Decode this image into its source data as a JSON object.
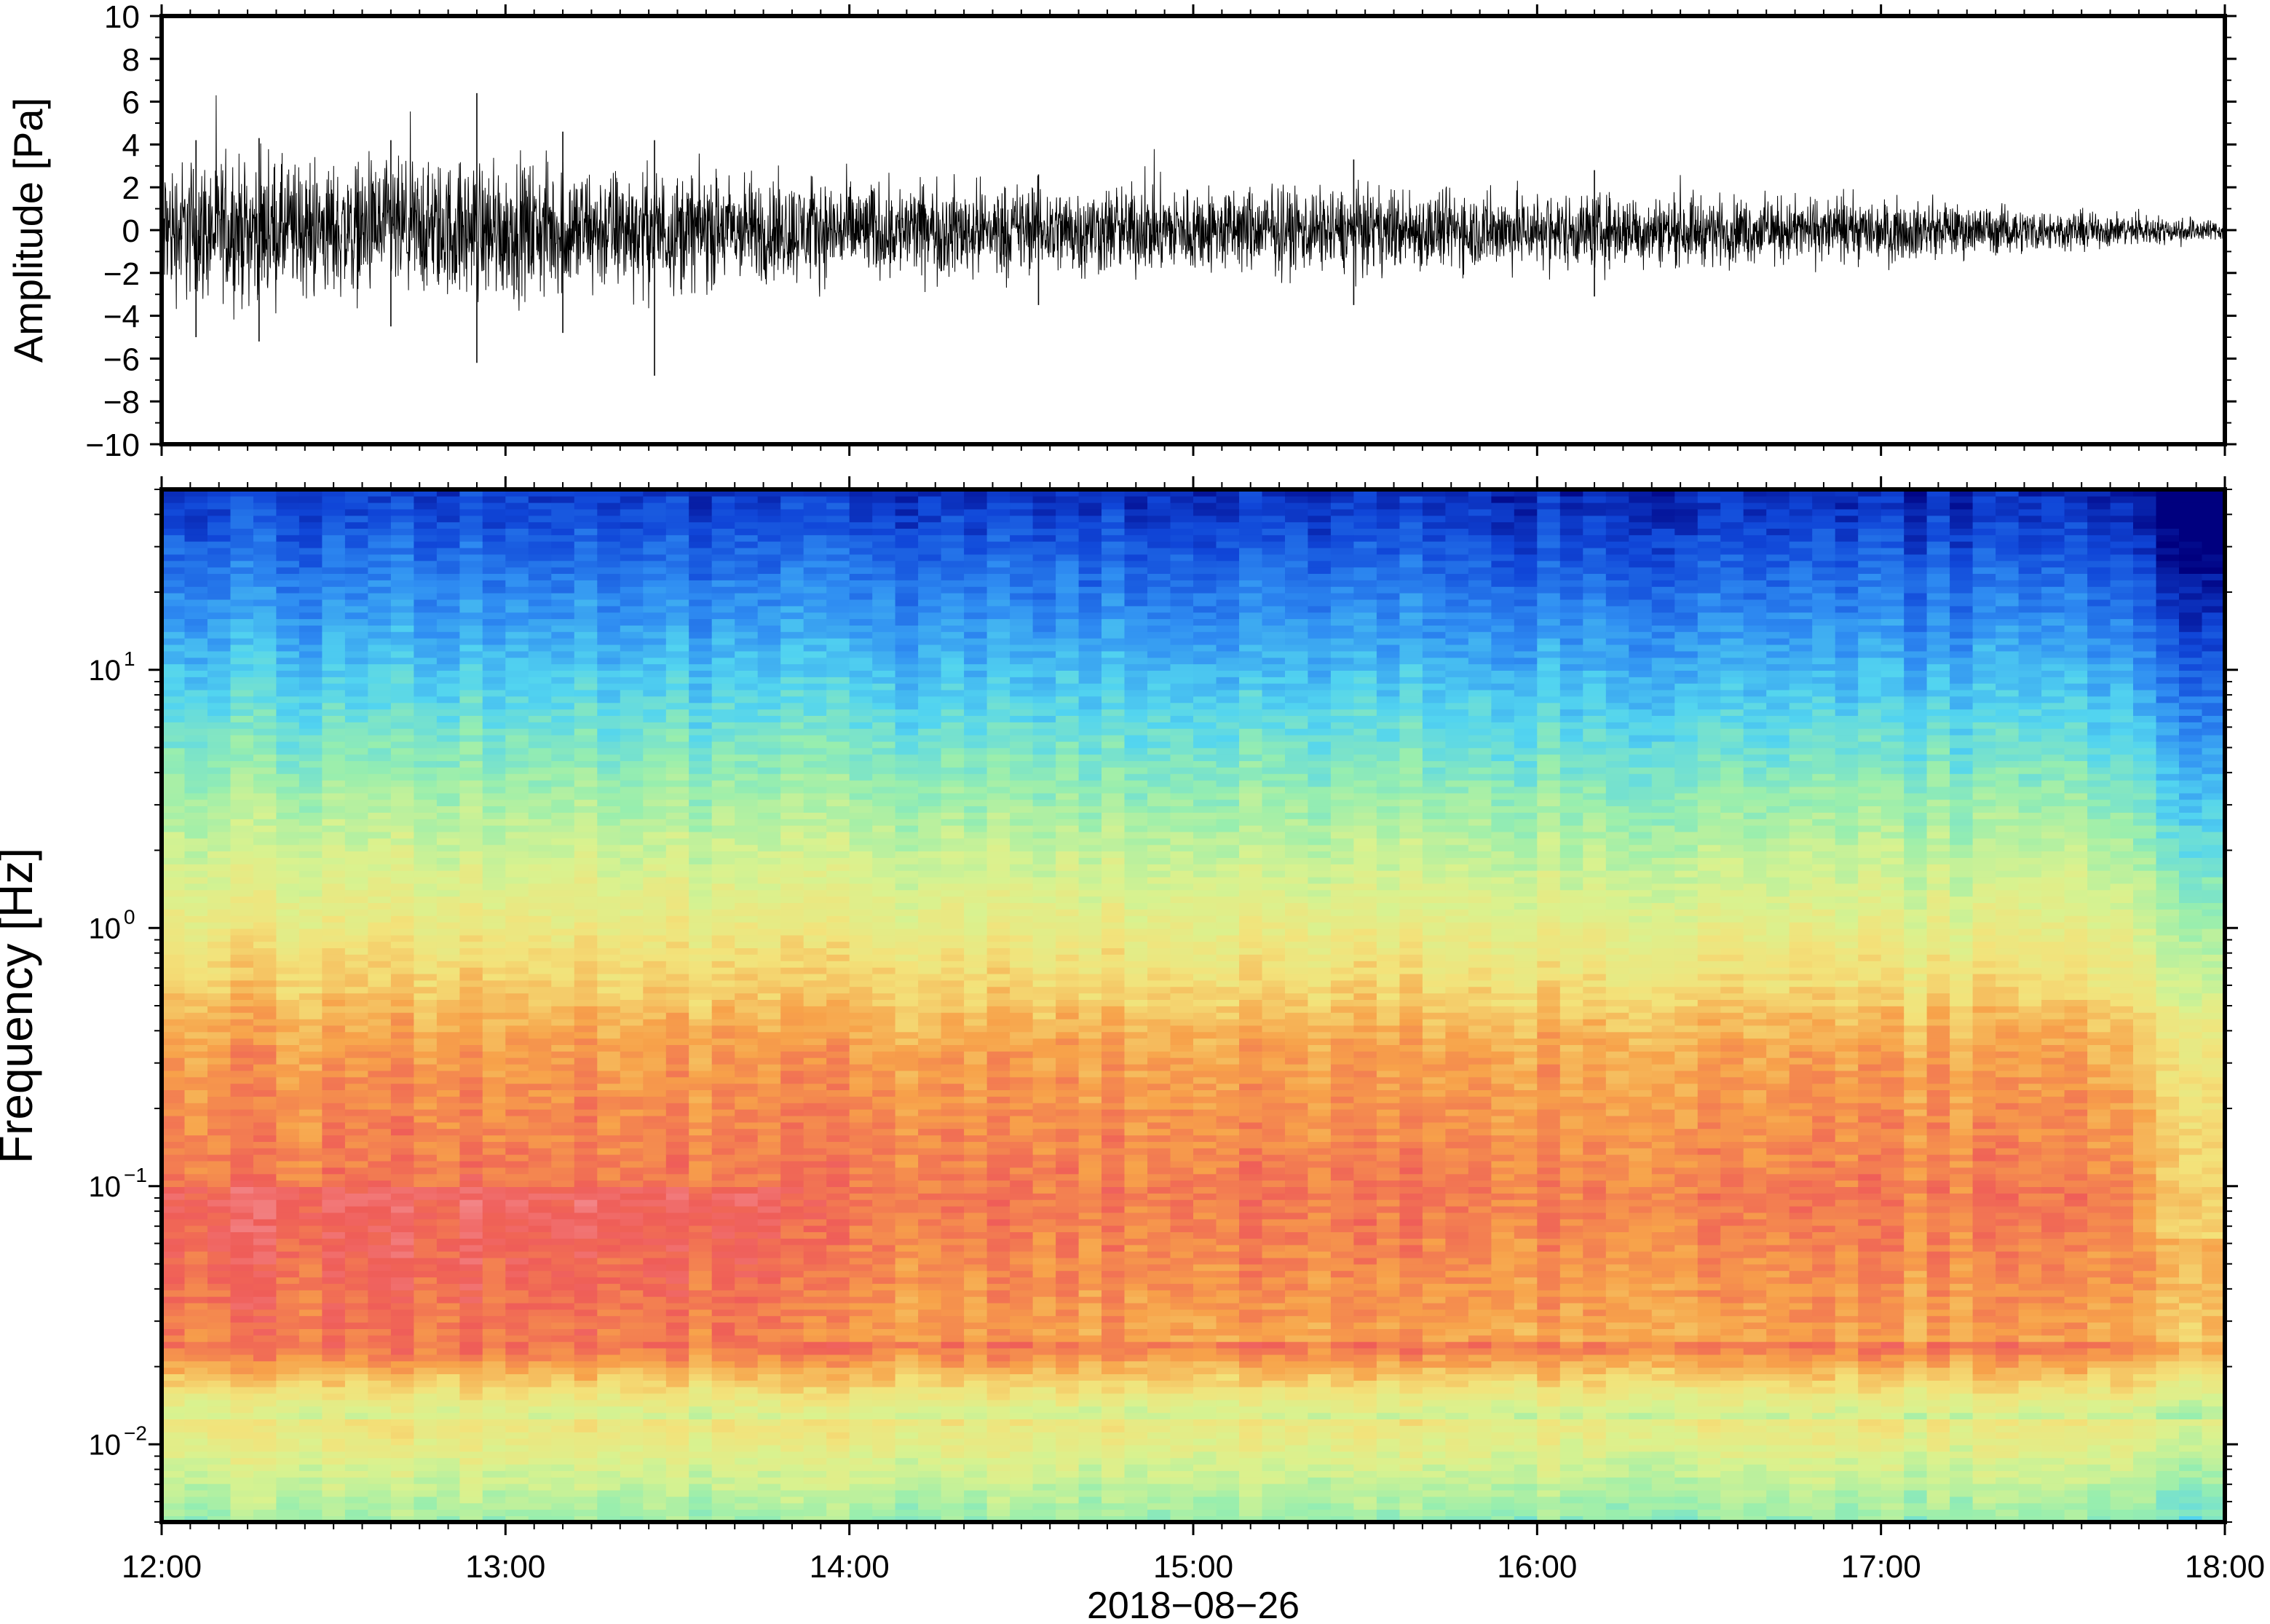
{
  "chart_data": [
    {
      "type": "line",
      "panel": "waveform",
      "ylabel": "Amplitude [Pa]",
      "ylim": [
        -10,
        10
      ],
      "yticks": [
        "10",
        "8",
        "6",
        "4",
        "2",
        "0",
        "−2",
        "−4",
        "−6",
        "−8",
        "−10"
      ],
      "ytick_values": [
        10,
        8,
        6,
        4,
        2,
        0,
        -2,
        -4,
        -6,
        -8,
        -10
      ],
      "xlim": [
        "12:00",
        "18:00"
      ],
      "grid": false,
      "envelope": {
        "time": [
          "12:00",
          "12:30",
          "13:00",
          "13:30",
          "14:00",
          "14:30",
          "15:00",
          "15:30",
          "16:00",
          "16:30",
          "17:00",
          "17:30",
          "18:00"
        ],
        "amplitude": [
          2.8,
          2.6,
          2.7,
          2.3,
          1.9,
          1.8,
          1.7,
          1.6,
          1.5,
          1.3,
          1.2,
          0.8,
          0.4
        ]
      },
      "peaks": [
        {
          "time": "12:06",
          "max": 4.2,
          "min": -5.0
        },
        {
          "time": "12:17",
          "max": 4.3,
          "min": -5.2
        },
        {
          "time": "12:40",
          "max": 4.2,
          "min": -4.5
        },
        {
          "time": "12:55",
          "max": 6.4,
          "min": -6.2
        },
        {
          "time": "13:10",
          "max": 4.6,
          "min": -4.8
        },
        {
          "time": "13:26",
          "max": 4.2,
          "min": -6.8
        },
        {
          "time": "14:33",
          "max": 2.6,
          "min": -3.5
        },
        {
          "time": "15:28",
          "max": 3.3,
          "min": -3.5
        },
        {
          "time": "16:10",
          "max": 2.8,
          "min": -3.1
        }
      ]
    },
    {
      "type": "heatmap",
      "panel": "spectrogram",
      "ylabel": "Frequency [Hz]",
      "xlabel": "2018−08−26",
      "yscale": "log",
      "ylim": [
        0.005,
        50
      ],
      "yticks": [
        {
          "value": 0.01,
          "base": "10",
          "exp": "−2"
        },
        {
          "value": 0.1,
          "base": "10",
          "exp": "−1"
        },
        {
          "value": 1,
          "base": "10",
          "exp": "0"
        },
        {
          "value": 10,
          "base": "10",
          "exp": "1"
        }
      ],
      "xticks": [
        "12:00",
        "13:00",
        "14:00",
        "15:00",
        "16:00",
        "17:00",
        "18:00"
      ],
      "colormap": [
        "#00007f",
        "#1046d8",
        "#2f8df2",
        "#52d4f0",
        "#98eeae",
        "#d9f28f",
        "#f3e27a",
        "#f7a24a",
        "#ef5d58",
        "#f59aa0"
      ],
      "note_colors": {
        "high_power": "#f59aa0",
        "mid_power": "#ef5d58",
        "low_power": "#1046d8"
      }
    }
  ]
}
